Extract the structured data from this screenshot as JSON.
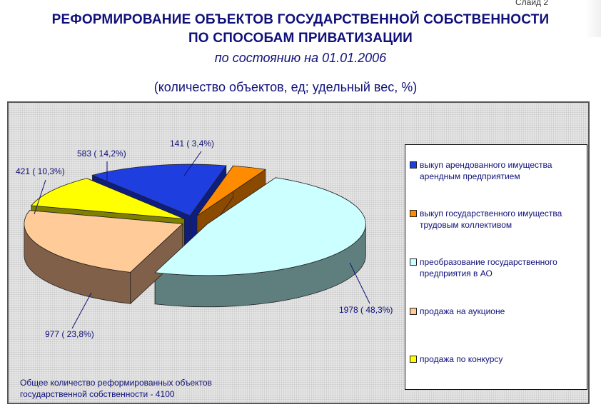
{
  "slide_label": "Слайд 2",
  "header": {
    "title_line1": "РЕФОРМИРОВАНИЕ  ОБЪЕКТОВ ГОСУДАРСТВЕННОЙ СОБСТВЕННОСТИ",
    "title_line2": "ПО СПОСОБАМ ПРИВАТИЗАЦИИ",
    "subtitle": "по состоянию  на 01.01.2006",
    "units": "(количество объектов, ед;   удельный вес, %)"
  },
  "footer": {
    "total_line1": "Общее количество реформированных объектов",
    "total_line2": "государственной собственности - 4100"
  },
  "chart_data": {
    "type": "pie",
    "style": "3d-exploded",
    "legend_position": "right",
    "categories": [
      "выкуп арендованного имущества арендным предприятием",
      "выкуп государственного имущества трудовым коллективом",
      "преобразование государственного предприятия в АО",
      "продажа на аукционе",
      "продажа по конкурсу"
    ],
    "values": [
      583,
      141,
      1978,
      977,
      421
    ],
    "percents": [
      14.2,
      3.4,
      48.3,
      23.8,
      10.3
    ],
    "data_labels": [
      "583 ( 14,2%)",
      "141 ( 3,4%)",
      "1978 ( 48,3%)",
      "977 ( 23,8%)",
      "421 ( 10,3%)"
    ],
    "colors": [
      "#1f3ee0",
      "#ff8c00",
      "#ccffff",
      "#ffcc99",
      "#ffff00"
    ],
    "side_colors": [
      "#0d1d80",
      "#8a4a00",
      "#5f7f7f",
      "#806048",
      "#808000"
    ],
    "total": 4100
  }
}
